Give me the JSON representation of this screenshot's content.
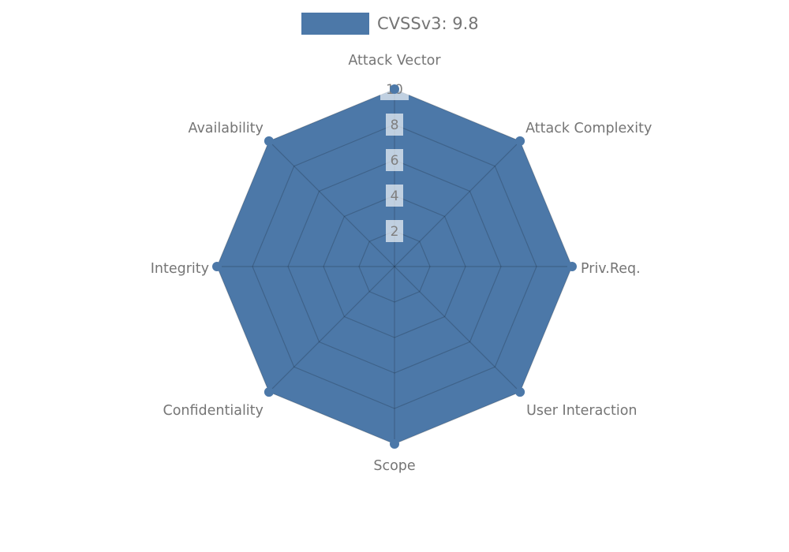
{
  "chart_data": {
    "type": "radar",
    "title": "",
    "legend": [
      {
        "label": "CVSSv3: 9.8",
        "color": "#4c78a8"
      }
    ],
    "categories": [
      "Attack Vector",
      "Attack Complexity",
      "Priv.Req.",
      "User Interaction",
      "Scope",
      "Confidentiality",
      "Integrity",
      "Availability"
    ],
    "series": [
      {
        "name": "CVSSv3: 9.8",
        "values": [
          10,
          10,
          10,
          10,
          10,
          10,
          10,
          10
        ]
      }
    ],
    "ticks": [
      "2",
      "4",
      "6",
      "8",
      "10"
    ],
    "tick_values": [
      2,
      4,
      6,
      8,
      10
    ],
    "range": [
      0,
      10
    ],
    "grid": true,
    "legend_position": "top-center",
    "colors": {
      "series_fill": "#4c78a8",
      "axis_label_text": "#757575",
      "tick_text": "#7f7f7f"
    }
  }
}
